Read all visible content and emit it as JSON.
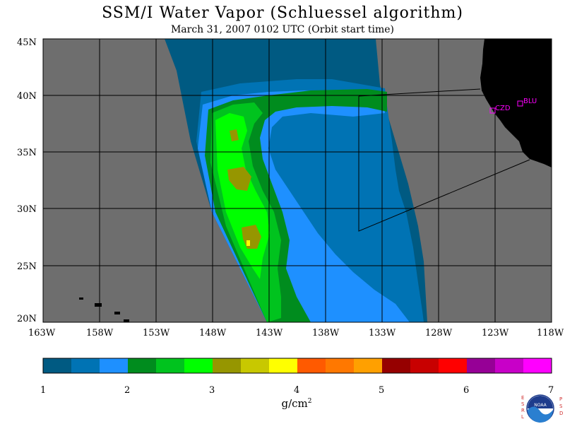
{
  "header": {
    "title": "SSM/I Water Vapor (Schluessel algorithm)",
    "subtitle": "March 31, 2007  0102 UTC  (Orbit start time)"
  },
  "map": {
    "lat_labels": [
      "45N",
      "40N",
      "35N",
      "30N",
      "25N",
      "20N"
    ],
    "lon_labels": [
      "163W",
      "158W",
      "153W",
      "148W",
      "143W",
      "138W",
      "133W",
      "128W",
      "123W",
      "118W"
    ],
    "stations": [
      {
        "id": "CZD",
        "label": "CZD"
      },
      {
        "id": "BLU",
        "label": "BLU"
      }
    ],
    "colors": {
      "no_data": "#6e6e6e",
      "land": "#000000",
      "station": "#ff00ff"
    }
  },
  "colorbar": {
    "tick_labels": [
      "1",
      "2",
      "3",
      "4",
      "5",
      "6",
      "7"
    ],
    "units": "g/cm",
    "units_sup": "2",
    "colors": [
      "#005a82",
      "#0073b4",
      "#1e90ff",
      "#008c1e",
      "#00c31e",
      "#00ff00",
      "#969600",
      "#c8c800",
      "#ffff00",
      "#ff5a00",
      "#ff7800",
      "#ffa000",
      "#960000",
      "#c80000",
      "#ff0000",
      "#960096",
      "#c800c8",
      "#ff00ff"
    ]
  },
  "logo": {
    "left_text": "ESRL",
    "right_text": "PSD",
    "center_text": "NOAA"
  }
}
